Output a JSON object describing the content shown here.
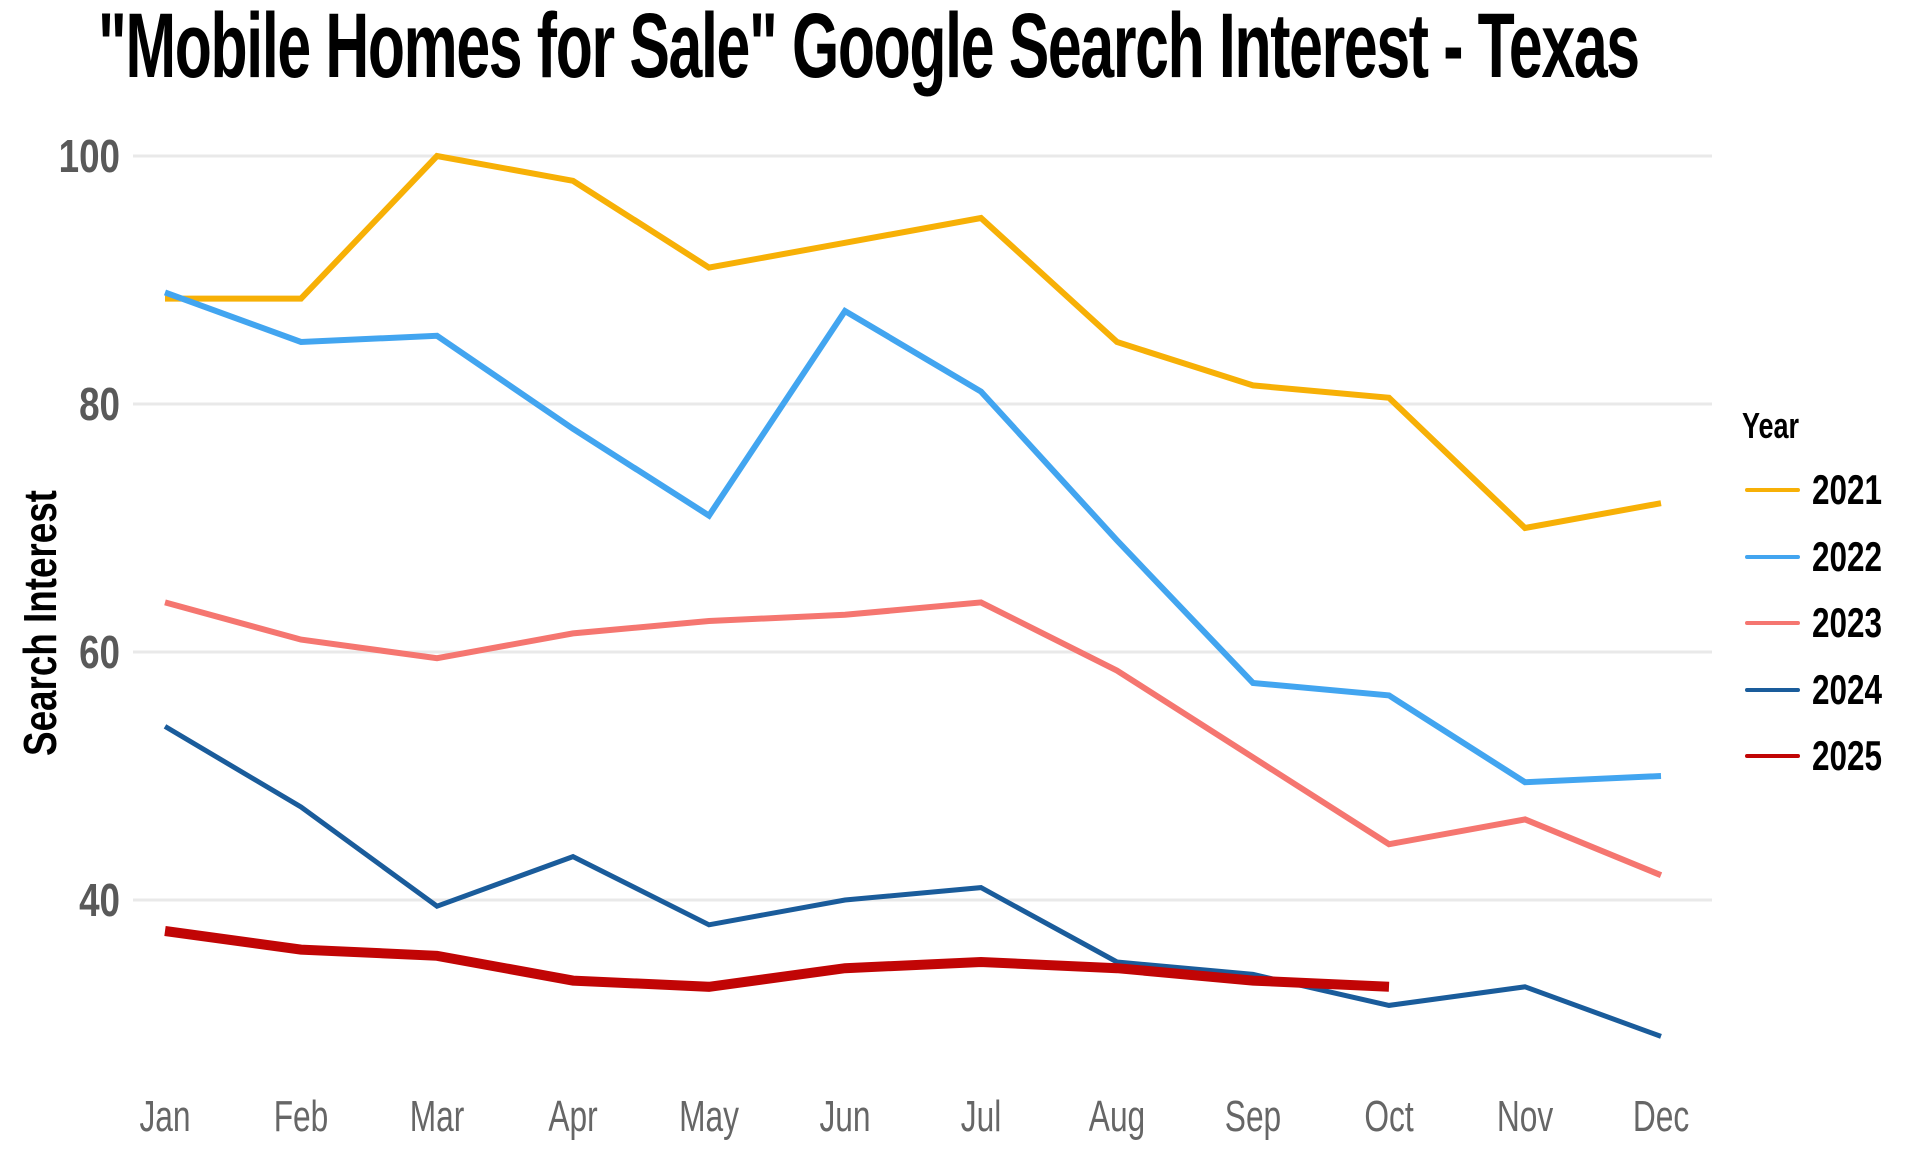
{
  "title": "\"Mobile Homes for Sale\" Google Search Interest - Texas",
  "y_axis": {
    "label": "Search Interest",
    "ticks": [
      40,
      60,
      80,
      100
    ]
  },
  "x_axis": {
    "months": [
      "Jan",
      "Feb",
      "Mar",
      "Apr",
      "May",
      "Jun",
      "Jul",
      "Aug",
      "Sep",
      "Oct",
      "Nov",
      "Dec"
    ]
  },
  "legend": {
    "title": "Year"
  },
  "colors": {
    "grid": "#e9e9e9",
    "tick_label": "#595959",
    "month_label": "#666666"
  },
  "chart_data": {
    "type": "line",
    "title": "\"Mobile Homes for Sale\" Google Search Interest - Texas",
    "xlabel": "",
    "ylabel": "Search Interest",
    "ylim": [
      26,
      103
    ],
    "grid": "horizontal-only",
    "legend_position": "right",
    "categories": [
      "Jan",
      "Feb",
      "Mar",
      "Apr",
      "May",
      "Jun",
      "Jul",
      "Aug",
      "Sep",
      "Oct",
      "Nov",
      "Dec"
    ],
    "series": [
      {
        "name": "2021",
        "color": "#F7B006",
        "width": 6,
        "values": [
          88.5,
          88.5,
          100,
          98,
          91,
          93,
          95,
          85,
          81.5,
          80.5,
          70,
          72
        ]
      },
      {
        "name": "2022",
        "color": "#42A5F0",
        "width": 6,
        "values": [
          89,
          85,
          85.5,
          78,
          71,
          87.5,
          81,
          69,
          57.5,
          56.5,
          49.5,
          50
        ]
      },
      {
        "name": "2023",
        "color": "#F57670",
        "width": 6,
        "values": [
          64,
          61,
          59.5,
          61.5,
          62.5,
          63,
          64,
          58.5,
          51.5,
          44.5,
          46.5,
          42
        ]
      },
      {
        "name": "2024",
        "color": "#1A5C9B",
        "width": 5,
        "values": [
          54,
          47.5,
          39.5,
          43.5,
          38,
          40,
          41,
          35,
          34,
          31.5,
          33,
          29
        ]
      },
      {
        "name": "2025",
        "color": "#C10505",
        "width": 10,
        "values": [
          37.5,
          36,
          35.5,
          33.5,
          33,
          34.5,
          35,
          34.5,
          33.5,
          33,
          null,
          null
        ]
      }
    ]
  }
}
